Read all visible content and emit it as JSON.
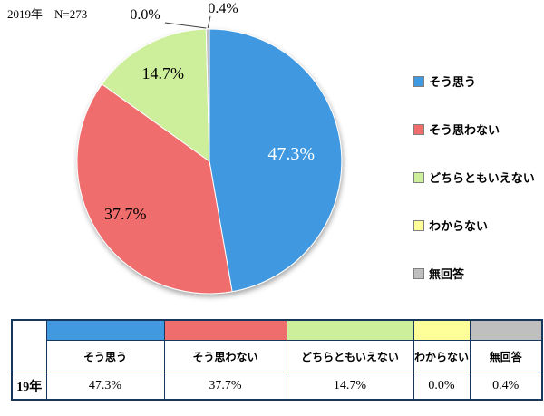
{
  "header": {
    "title": "2019年　N=273"
  },
  "chart_data": {
    "type": "pie",
    "title": "",
    "categories": [
      "そう思う",
      "そう思わない",
      "どちらともいえない",
      "わからない",
      "無回答"
    ],
    "values": [
      47.3,
      37.7,
      14.7,
      0.0,
      0.4
    ],
    "value_labels": [
      "47.3%",
      "37.7%",
      "14.7%",
      "0.0%",
      "0.4%"
    ],
    "colors": [
      "#4199E0",
      "#EF6D6D",
      "#CDEE9B",
      "#FFFF99",
      "#BFBFBF"
    ],
    "label_text_colors": [
      "#FFFFFF",
      "#000000",
      "#000000",
      "#000000",
      "#000000"
    ],
    "start_angle_deg": 0,
    "direction": "clockwise",
    "legend_position": "right",
    "note_text": "2019年　N=273"
  },
  "table": {
    "row_label": "19年",
    "columns": [
      "そう思う",
      "そう思わない",
      "どちらともいえない",
      "わからない",
      "無回答"
    ],
    "values": [
      "47.3%",
      "37.7%",
      "14.7%",
      "0.0%",
      "0.4%"
    ]
  },
  "styles": {
    "border_color": "#17375D",
    "slice_stroke": "#FFFFFF",
    "leader_line_color": "#404040"
  }
}
